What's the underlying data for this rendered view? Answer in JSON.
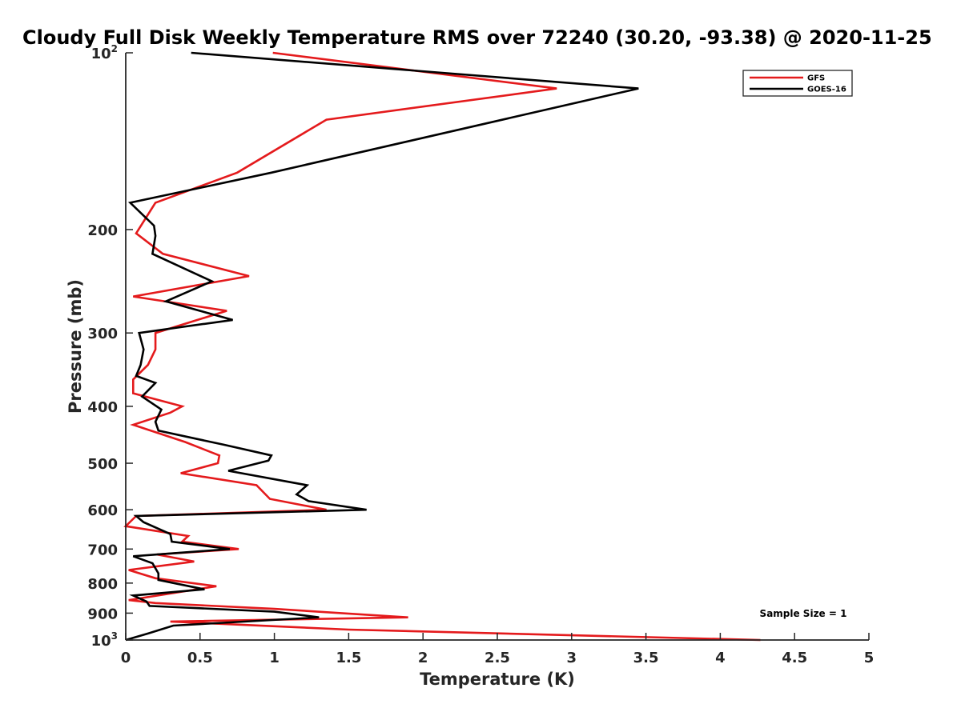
{
  "chart_data": {
    "type": "line",
    "title": "Cloudy Full Disk Weekly Temperature RMS over 72240 (30.20, -93.38) @ 2020-11-25",
    "xlabel": "Temperature (K)",
    "ylabel": "Pressure (mb)",
    "xlim": [
      0,
      5
    ],
    "ylim": [
      1000,
      100
    ],
    "y_scale": "log",
    "y_reversed": true,
    "x_ticks": [
      0,
      0.5,
      1,
      1.5,
      2,
      2.5,
      3,
      3.5,
      4,
      4.5,
      5
    ],
    "x_tick_labels": [
      "0",
      "0.5",
      "1",
      "1.5",
      "2",
      "2.5",
      "3",
      "3.5",
      "4",
      "4.5",
      "5"
    ],
    "y_ticks": [
      {
        "value": 100,
        "base": "10",
        "exp": "2"
      },
      {
        "value": 200,
        "label": "200"
      },
      {
        "value": 300,
        "label": "300"
      },
      {
        "value": 400,
        "label": "400"
      },
      {
        "value": 500,
        "label": "500"
      },
      {
        "value": 600,
        "label": "600"
      },
      {
        "value": 700,
        "label": "700"
      },
      {
        "value": 800,
        "label": "800"
      },
      {
        "value": 900,
        "label": "900"
      },
      {
        "value": 1000,
        "base": "10",
        "exp": "3"
      }
    ],
    "grid": false,
    "legend_position": "top-right",
    "annotation": "Sample Size = 1",
    "series": [
      {
        "name": "GFS",
        "color": "#e41a1c",
        "points": [
          [
            0.99,
            100
          ],
          [
            2.9,
            115
          ],
          [
            1.35,
            130
          ],
          [
            0.75,
            160
          ],
          [
            0.2,
            180
          ],
          [
            0.07,
            203
          ],
          [
            0.25,
            220
          ],
          [
            0.83,
            240
          ],
          [
            0.05,
            260
          ],
          [
            0.68,
            275
          ],
          [
            0.2,
            300
          ],
          [
            0.2,
            320
          ],
          [
            0.15,
            340
          ],
          [
            0.05,
            360
          ],
          [
            0.05,
            380
          ],
          [
            0.38,
            400
          ],
          [
            0.3,
            410
          ],
          [
            0.05,
            430
          ],
          [
            0.4,
            460
          ],
          [
            0.63,
            485
          ],
          [
            0.62,
            500
          ],
          [
            0.37,
            520
          ],
          [
            0.88,
            545
          ],
          [
            0.97,
            575
          ],
          [
            1.35,
            600
          ],
          [
            0.07,
            615
          ],
          [
            0.0,
            640
          ],
          [
            0.42,
            665
          ],
          [
            0.38,
            680
          ],
          [
            0.76,
            700
          ],
          [
            0.21,
            715
          ],
          [
            0.46,
            735
          ],
          [
            0.02,
            760
          ],
          [
            0.2,
            785
          ],
          [
            0.61,
            810
          ],
          [
            0.02,
            855
          ],
          [
            0.2,
            865
          ],
          [
            1.0,
            885
          ],
          [
            1.45,
            900
          ],
          [
            1.9,
            915
          ],
          [
            0.3,
            930
          ],
          [
            1.5,
            960
          ],
          [
            4.27,
            1000
          ]
        ]
      },
      {
        "name": "GOES-16",
        "color": "#000000",
        "points": [
          [
            0.44,
            100
          ],
          [
            3.45,
            115
          ],
          [
            0.98,
            160
          ],
          [
            0.03,
            180
          ],
          [
            0.19,
            197
          ],
          [
            0.2,
            205
          ],
          [
            0.18,
            220
          ],
          [
            0.58,
            245
          ],
          [
            0.27,
            265
          ],
          [
            0.72,
            285
          ],
          [
            0.09,
            300
          ],
          [
            0.12,
            320
          ],
          [
            0.1,
            340
          ],
          [
            0.07,
            355
          ],
          [
            0.2,
            365
          ],
          [
            0.11,
            385
          ],
          [
            0.24,
            405
          ],
          [
            0.2,
            425
          ],
          [
            0.22,
            440
          ],
          [
            0.66,
            465
          ],
          [
            0.98,
            485
          ],
          [
            0.96,
            495
          ],
          [
            0.69,
            515
          ],
          [
            1.22,
            545
          ],
          [
            1.15,
            565
          ],
          [
            1.23,
            580
          ],
          [
            1.62,
            600
          ],
          [
            0.07,
            615
          ],
          [
            0.12,
            630
          ],
          [
            0.3,
            660
          ],
          [
            0.31,
            680
          ],
          [
            0.7,
            700
          ],
          [
            0.05,
            720
          ],
          [
            0.18,
            740
          ],
          [
            0.22,
            770
          ],
          [
            0.22,
            790
          ],
          [
            0.53,
            820
          ],
          [
            0.05,
            840
          ],
          [
            0.14,
            860
          ],
          [
            0.16,
            875
          ],
          [
            1.0,
            895
          ],
          [
            1.3,
            915
          ],
          [
            0.32,
            945
          ],
          [
            0.15,
            975
          ],
          [
            0.0,
            1000
          ]
        ]
      }
    ]
  }
}
